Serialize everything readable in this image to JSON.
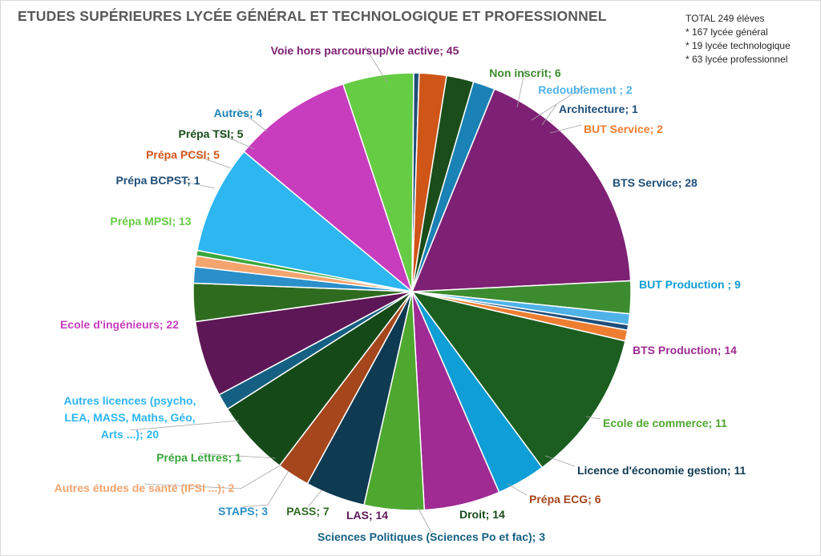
{
  "chart_data": {
    "type": "pie",
    "title": "ETUDES SUPÉRIEURES LYCÉE GÉNÉRAL ET TECHNOLOGIQUE ET PROFESSIONNEL",
    "notes": [
      "TOTAL 249 élèves",
      "* 167 lycée général",
      "* 19 lycée technologique",
      "* 63 lycée professionnel"
    ],
    "slices": [
      {
        "label": "Voie hors parcoursup/vie active; 45",
        "value": 45,
        "color": "#7E2073",
        "label_color": "#7E2073"
      },
      {
        "label": "Non inscrit; 6",
        "value": 6,
        "color": "#3D8B2F",
        "label_color": "#3D8B2F"
      },
      {
        "label": "Redoublement ; 2",
        "value": 2,
        "color": "#4FB3E8",
        "label_color": "#4FB3E8"
      },
      {
        "label": "Architecture; 1",
        "value": 1,
        "color": "#1F4E79",
        "label_color": "#1F4E79"
      },
      {
        "label": "BUT Service; 2",
        "value": 2,
        "color": "#ED7D31",
        "label_color": "#ED7D31"
      },
      {
        "label": "BTS Service; 28",
        "value": 28,
        "color": "#1B5E20",
        "label_color": "#1F4E79"
      },
      {
        "label": "BUT Production ; 9",
        "value": 9,
        "color": "#0F9ED5",
        "label_color": "#0F9ED5"
      },
      {
        "label": "BTS Production; 14",
        "value": 14,
        "color": "#A02B93",
        "label_color": "#A02B93"
      },
      {
        "label": "Ecole de commerce; 11",
        "value": 11,
        "color": "#4EA72E",
        "label_color": "#4EA72E"
      },
      {
        "label": "Licence d'économie gestion; 11",
        "value": 11,
        "color": "#0E3A52",
        "label_color": "#0E3A52"
      },
      {
        "label": "Prépa ECG; 6",
        "value": 6,
        "color": "#A5461C",
        "label_color": "#A5461C"
      },
      {
        "label": "Droit; 14",
        "value": 14,
        "color": "#154A18",
        "label_color": "#154A18"
      },
      {
        "label": "Sciences Politiques (Sciences Po et fac); 3",
        "value": 3,
        "color": "#156082",
        "label_color": "#156082"
      },
      {
        "label": "LAS; 14",
        "value": 14,
        "color": "#5E1756",
        "label_color": "#5E1756"
      },
      {
        "label": "PASS; 7",
        "value": 7,
        "color": "#2E6B1F",
        "label_color": "#2E6B1F"
      },
      {
        "label": "STAPS; 3",
        "value": 3,
        "color": "#2B8FC9",
        "label_color": "#2B8FC9"
      },
      {
        "label": "Autres études de santé (IFSI ...); 2",
        "value": 2,
        "color": "#F4A46E",
        "label_color": "#F4A46E"
      },
      {
        "label": "Prépa Lettres; 1",
        "value": 1,
        "color": "#3AA63A",
        "label_color": "#3AA63A"
      },
      {
        "label": "Autres licences (psycho, LEA, MASS, Maths, Géo, Arts ...); 20",
        "value": 20,
        "color": "#2DB6EF",
        "label_color": "#2DB6EF"
      },
      {
        "label": "Ecole d'ingénieurs; 22",
        "value": 22,
        "color": "#C83DBE",
        "label_color": "#C83DBE"
      },
      {
        "label": "Prépa MPSI; 13",
        "value": 13,
        "color": "#66CC44",
        "label_color": "#66CC44"
      },
      {
        "label": "Prépa BCPST; 1",
        "value": 1,
        "color": "#1F4E79",
        "label_color": "#1F4E79"
      },
      {
        "label": "Prépa PCSI; 5",
        "value": 5,
        "color": "#D05518",
        "label_color": "#D05518"
      },
      {
        "label": "Prépa TSI; 5",
        "value": 5,
        "color": "#1A4D1A",
        "label_color": "#1A4D1A"
      },
      {
        "label": "Autres; 4",
        "value": 4,
        "color": "#1A82B5",
        "label_color": "#1A82B5"
      }
    ]
  }
}
